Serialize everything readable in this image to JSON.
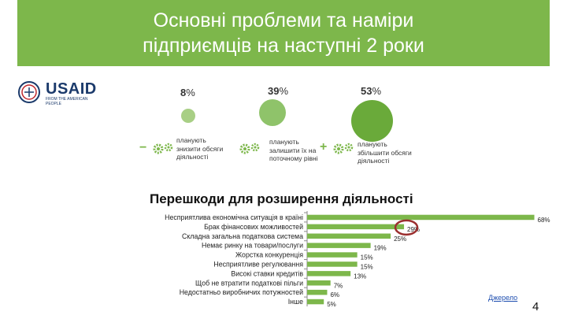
{
  "title": "Основні проблеми та наміри\nпідприємців на наступні 2 роки",
  "logo": {
    "name": "USAID",
    "tagline": "FROM THE AMERICAN PEOPLE"
  },
  "plans": [
    {
      "value": "8",
      "unit": "%",
      "text": "планують\nзнизити обсяги\nдіяльності",
      "sign": "−"
    },
    {
      "value": "39",
      "unit": "%",
      "text": "планують\nзалишити їх на\nпоточному рівні",
      "sign": ""
    },
    {
      "value": "53",
      "unit": "%",
      "text": "планують\nзбільшити обсяги\nдіяльності",
      "sign": "+"
    }
  ],
  "colors": {
    "green": "#7db74b",
    "bubble_light": "#a8cf85",
    "bubble_mid": "#8fc36a",
    "bubble_dark": "#6aaa3a",
    "highlight": "#9b2f2f"
  },
  "chart_data": {
    "type": "bar",
    "orientation": "horizontal",
    "title": "Перешкоди для розширення діяльності",
    "categories": [
      "Несприятлива економічна ситуація в країні",
      "Брак фінансових можливостей",
      "Складна загальна податкова система",
      "Немає ринку на товари/послуги",
      "Жорстка конкуренція",
      "Несприятливе регулювання",
      "Високі ставки кредитів",
      "Щоб не втратити податкові пільги",
      "Недостатньо виробничих потужностей",
      "Інше"
    ],
    "values": [
      68,
      29,
      25,
      19,
      15,
      15,
      13,
      7,
      6,
      5
    ],
    "labels": [
      "68%",
      "29%",
      "25%",
      "19%",
      "15%",
      "15%",
      "13%",
      "7%",
      "6%",
      "5%"
    ],
    "highlighted_index": 1,
    "xlim": [
      0,
      70
    ],
    "grid": false,
    "bar_color": "#7db74b"
  },
  "source_label": "Джерело",
  "page_number": "4"
}
